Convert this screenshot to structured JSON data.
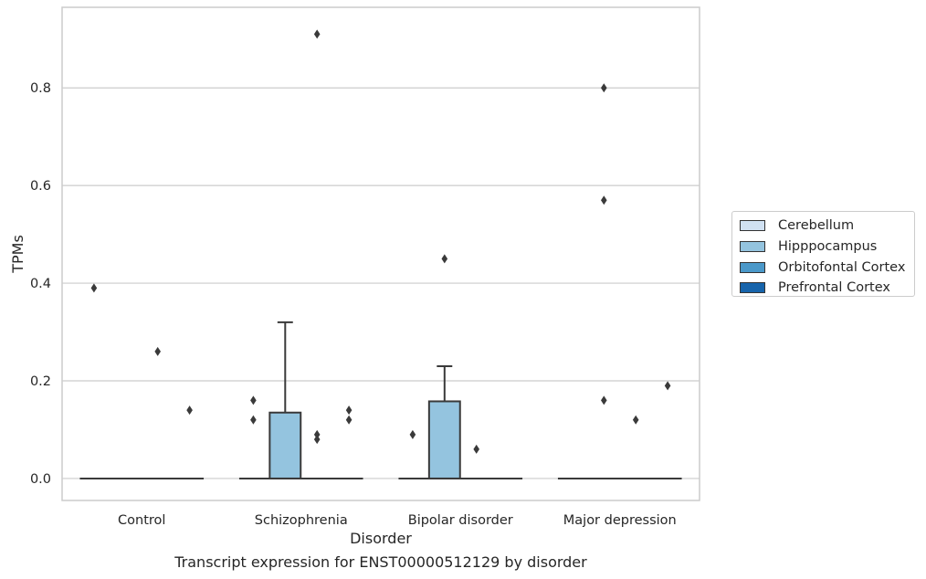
{
  "figure_caption": "Transcript expression for ENST00000512129 by disorder",
  "chart_data": {
    "type": "box",
    "title": "",
    "xlabel": "Disorder",
    "ylabel": "TPMs",
    "ylim": [
      -0.045,
      0.965
    ],
    "yticks": [
      0.0,
      0.2,
      0.4,
      0.6,
      0.8
    ],
    "ytick_labels": [
      "0.0",
      "0.2",
      "0.4",
      "0.6",
      "0.8"
    ],
    "grid": "horizontal",
    "legend_position": "right",
    "categories": [
      "Control",
      "Schizophrenia",
      "Bipolar disorder",
      "Major depression"
    ],
    "series": [
      {
        "name": "Cerebellum",
        "color": "#d0e1f2"
      },
      {
        "name": "Hipppocampus",
        "color": "#94c4df"
      },
      {
        "name": "Orbitofontal Cortex",
        "color": "#4a98c9"
      },
      {
        "name": "Prefrontal Cortex",
        "color": "#1764ab"
      }
    ],
    "boxes": [
      {
        "category": "Control",
        "series": "Hipppocampus",
        "q1": 0.0,
        "median": 0.0,
        "q3": 0.0,
        "whisker_low": 0.0,
        "whisker_high": 0.0
      },
      {
        "category": "Schizophrenia",
        "series": "Hipppocampus",
        "q1": 0.0,
        "median": 0.0,
        "q3": 0.135,
        "whisker_low": 0.0,
        "whisker_high": 0.32
      },
      {
        "category": "Bipolar disorder",
        "series": "Hipppocampus",
        "q1": 0.0,
        "median": 0.0,
        "q3": 0.158,
        "whisker_low": 0.0,
        "whisker_high": 0.23
      },
      {
        "category": "Major depression",
        "series": "Hipppocampus",
        "q1": 0.0,
        "median": 0.0,
        "q3": 0.0,
        "whisker_low": 0.0,
        "whisker_high": 0.0
      }
    ],
    "outliers": [
      {
        "category": "Control",
        "series": "Cerebellum",
        "values": [
          0.39
        ]
      },
      {
        "category": "Control",
        "series": "Orbitofontal Cortex",
        "values": [
          0.26
        ]
      },
      {
        "category": "Control",
        "series": "Prefrontal Cortex",
        "values": [
          0.14
        ]
      },
      {
        "category": "Schizophrenia",
        "series": "Cerebellum",
        "values": [
          0.16,
          0.12
        ]
      },
      {
        "category": "Schizophrenia",
        "series": "Orbitofontal Cortex",
        "values": [
          0.91,
          0.09,
          0.08
        ]
      },
      {
        "category": "Schizophrenia",
        "series": "Prefrontal Cortex",
        "values": [
          0.14,
          0.12
        ]
      },
      {
        "category": "Bipolar disorder",
        "series": "Cerebellum",
        "values": [
          0.09
        ]
      },
      {
        "category": "Bipolar disorder",
        "series": "Hipppocampus",
        "values": [
          0.45
        ]
      },
      {
        "category": "Bipolar disorder",
        "series": "Orbitofontal Cortex",
        "values": [
          0.06
        ]
      },
      {
        "category": "Major depression",
        "series": "Hipppocampus",
        "values": [
          0.8,
          0.57,
          0.16
        ]
      },
      {
        "category": "Major depression",
        "series": "Orbitofontal Cortex",
        "values": [
          0.12
        ]
      },
      {
        "category": "Major depression",
        "series": "Prefrontal Cortex",
        "values": [
          0.19
        ]
      }
    ]
  }
}
